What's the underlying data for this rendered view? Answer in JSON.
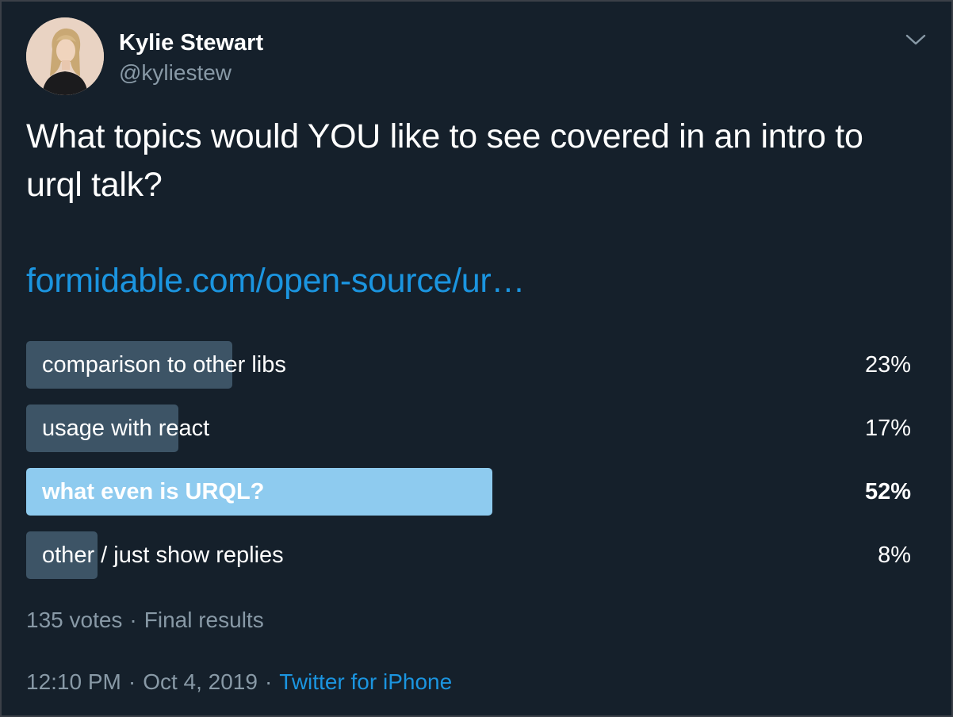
{
  "author": {
    "name": "Kylie Stewart",
    "handle": "@kyliestew"
  },
  "tweet": {
    "text": "What topics would YOU like to see covered in an intro to urql talk?",
    "link": "formidable.com/open-source/ur…"
  },
  "poll": {
    "options": [
      {
        "label": "comparison to other libs",
        "percent": "23%",
        "fraction": 0.23
      },
      {
        "label": "usage with react",
        "percent": "17%",
        "fraction": 0.17
      },
      {
        "label": "what even is URQL?",
        "percent": "52%",
        "fraction": 0.52,
        "winner": true
      },
      {
        "label": "other / just show replies",
        "percent": "8%",
        "fraction": 0.08
      }
    ],
    "votes": "135 votes",
    "separator": "·",
    "status": "Final results"
  },
  "meta": {
    "time": "12:10 PM",
    "separator": "·",
    "date": "Oct 4, 2019",
    "source": "Twitter for iPhone"
  },
  "colors": {
    "background": "#15202b",
    "link": "#1b95e0",
    "muted": "#8899a6",
    "poll_bar": "#3d5466",
    "poll_bar_winner": "#8ecbef"
  },
  "icons": {
    "menu": "chevron-down-icon"
  }
}
